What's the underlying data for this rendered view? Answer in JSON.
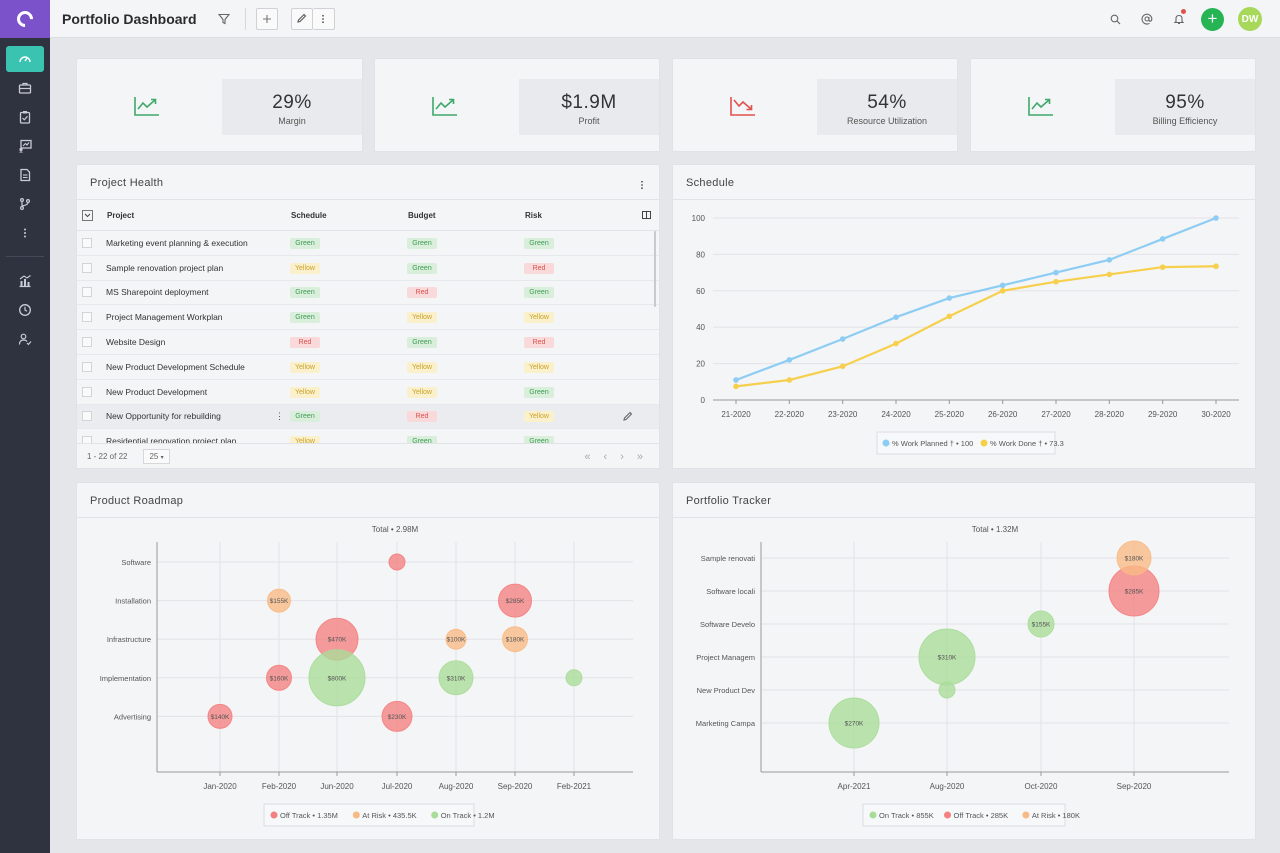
{
  "header": {
    "title": "Portfolio Dashboard",
    "avatar_initials": "DW"
  },
  "kpis": [
    {
      "value": "29%",
      "label": "Margin",
      "trend": "up",
      "color": "#3fa86a"
    },
    {
      "value": "$1.9M",
      "label": "Profit",
      "trend": "up",
      "color": "#3fa86a"
    },
    {
      "value": "54%",
      "label": "Resource Utilization",
      "trend": "down",
      "color": "#e0524c"
    },
    {
      "value": "95%",
      "label": "Billing Efficiency",
      "trend": "up",
      "color": "#3fa86a"
    }
  ],
  "project_health": {
    "title": "Project Health",
    "columns": {
      "project": "Project",
      "schedule": "Schedule",
      "budget": "Budget",
      "risk": "Risk"
    },
    "rows": [
      {
        "project": "Marketing event planning & execution",
        "schedule": "Green",
        "budget": "Green",
        "risk": "Green"
      },
      {
        "project": "Sample renovation project plan",
        "schedule": "Yellow",
        "budget": "Green",
        "risk": "Red"
      },
      {
        "project": "MS Sharepoint deployment",
        "schedule": "Green",
        "budget": "Red",
        "risk": "Green"
      },
      {
        "project": "Project Management Workplan",
        "schedule": "Green",
        "budget": "Yellow",
        "risk": "Yellow"
      },
      {
        "project": "Website Design",
        "schedule": "Red",
        "budget": "Green",
        "risk": "Red"
      },
      {
        "project": "New Product Development Schedule",
        "schedule": "Yellow",
        "budget": "Yellow",
        "risk": "Yellow"
      },
      {
        "project": "New Product Development",
        "schedule": "Yellow",
        "budget": "Yellow",
        "risk": "Green"
      },
      {
        "project": "New Opportunity for rebuilding",
        "schedule": "Green",
        "budget": "Red",
        "risk": "Yellow"
      },
      {
        "project": "Residential renovation project plan",
        "schedule": "Yellow",
        "budget": "Green",
        "risk": "Green"
      }
    ],
    "pagination": {
      "summary": "1 - 22 of 22",
      "page_size": "25"
    }
  },
  "chart_data": [
    {
      "type": "line",
      "title": "Schedule",
      "x": [
        "21-2020",
        "22-2020",
        "23-2020",
        "24-2020",
        "25-2020",
        "26-2020",
        "27-2020",
        "28-2020",
        "29-2020",
        "30-2020"
      ],
      "ylim": [
        0,
        100
      ],
      "yticks": [
        0,
        20,
        40,
        60,
        80,
        100
      ],
      "grid": true,
      "legend": "bottom",
      "series": [
        {
          "name": "% Work Planned † • 100",
          "color": "#8ecdf3",
          "values": [
            11,
            22,
            33.5,
            45.5,
            56,
            63,
            70,
            77,
            88.5,
            100
          ]
        },
        {
          "name": "% Work Done † • 73.3",
          "color": "#f6d04d",
          "values": [
            7.5,
            11,
            18.5,
            31,
            46,
            60,
            65,
            69,
            73,
            73.5
          ]
        }
      ]
    },
    {
      "type": "scatter",
      "title": "Product Roadmap",
      "subtitle": "Total • 2.98M",
      "x": [
        "Jan-2020",
        "Feb-2020",
        "Jun-2020",
        "Jul-2020",
        "Aug-2020",
        "Sep-2020",
        "Feb-2021"
      ],
      "categories": [
        "Software",
        "Installation",
        "Infrastructure",
        "Implementation",
        "Advertising"
      ],
      "legend": "bottom",
      "series": [
        {
          "name": "Off Track • 1.35M",
          "color": "#f48080",
          "points": [
            {
              "x": "Jul-2020",
              "y": "Software",
              "label": ""
            },
            {
              "x": "Sep-2020",
              "y": "Installation",
              "label": "$285K"
            },
            {
              "x": "Jun-2020",
              "y": "Infrastructure",
              "label": "$470K"
            },
            {
              "x": "Feb-2020",
              "y": "Implementation",
              "label": "$160K"
            },
            {
              "x": "Jan-2020",
              "y": "Advertising",
              "label": "$140K"
            },
            {
              "x": "Jul-2020",
              "y": "Advertising",
              "label": "$230K"
            }
          ]
        },
        {
          "name": "At Risk • 435.5K",
          "color": "#f8ba84",
          "points": [
            {
              "x": "Feb-2020",
              "y": "Installation",
              "label": "$155K"
            },
            {
              "x": "Aug-2020",
              "y": "Infrastructure",
              "label": "$100K"
            },
            {
              "x": "Sep-2020",
              "y": "Infrastructure",
              "label": "$180K"
            }
          ]
        },
        {
          "name": "On Track • 1.2M",
          "color": "#a9dc99",
          "points": [
            {
              "x": "Jun-2020",
              "y": "Implementation",
              "label": "$800K"
            },
            {
              "x": "Aug-2020",
              "y": "Implementation",
              "label": "$310K"
            },
            {
              "x": "Feb-2021",
              "y": "Implementation",
              "label": ""
            }
          ]
        }
      ]
    },
    {
      "type": "scatter",
      "title": "Portfolio Tracker",
      "subtitle": "Total • 1.32M",
      "x": [
        "Apr-2021",
        "Aug-2020",
        "Oct-2020",
        "Sep-2020"
      ],
      "categories": [
        "Sample renovati",
        "Software locali",
        "Software Develo",
        "Project Managem",
        "New Product Dev",
        "Marketing Campa"
      ],
      "legend": "bottom",
      "series": [
        {
          "name": "On Track • 855K",
          "color": "#a9dc99",
          "points": [
            {
              "x": "Oct-2020",
              "y": "Software Develo",
              "label": "$155K"
            },
            {
              "x": "Aug-2020",
              "y": "Project Managem",
              "label": "$310K"
            },
            {
              "x": "Aug-2020",
              "y": "New Product Dev",
              "label": ""
            },
            {
              "x": "Apr-2021",
              "y": "Marketing Campa",
              "label": "$270K"
            }
          ]
        },
        {
          "name": "Off Track • 285K",
          "color": "#f48080",
          "points": [
            {
              "x": "Sep-2020",
              "y": "Software locali",
              "label": "$285K"
            }
          ]
        },
        {
          "name": "At Risk • 180K",
          "color": "#f8ba84",
          "points": [
            {
              "x": "Sep-2020",
              "y": "Sample renovati",
              "label": "$180K"
            }
          ]
        }
      ]
    }
  ]
}
